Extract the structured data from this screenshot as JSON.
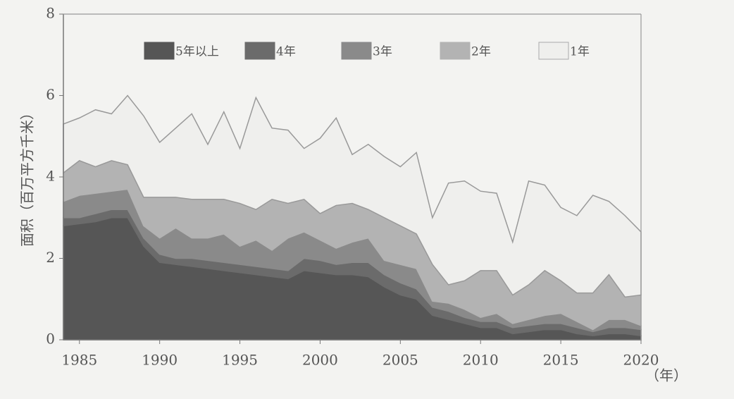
{
  "chart_data": {
    "type": "stacked-area",
    "y_label": "面积（百万平方千米）",
    "x_label": "（年）",
    "x": [
      1984,
      1985,
      1986,
      1987,
      1988,
      1989,
      1990,
      1991,
      1992,
      1993,
      1994,
      1995,
      1996,
      1997,
      1998,
      1999,
      2000,
      2001,
      2002,
      2003,
      2004,
      2005,
      2006,
      2007,
      2008,
      2009,
      2010,
      2011,
      2012,
      2013,
      2014,
      2015,
      2016,
      2017,
      2018,
      2019,
      2020
    ],
    "xlim": [
      1984,
      2020
    ],
    "xticks": [
      1985,
      1990,
      1995,
      2000,
      2005,
      2010,
      2015,
      2020
    ],
    "ylim": [
      0,
      8
    ],
    "yticks": [
      0,
      2,
      4,
      6,
      8
    ],
    "series": [
      {
        "name": "5年以上",
        "color": "#565656",
        "values": [
          2.8,
          2.85,
          2.9,
          3.0,
          3.0,
          2.3,
          1.9,
          1.85,
          1.8,
          1.75,
          1.7,
          1.65,
          1.6,
          1.55,
          1.5,
          1.7,
          1.65,
          1.6,
          1.6,
          1.55,
          1.3,
          1.1,
          1.0,
          0.6,
          0.5,
          0.4,
          0.3,
          0.3,
          0.15,
          0.2,
          0.25,
          0.25,
          0.15,
          0.1,
          0.15,
          0.15,
          0.1
        ]
      },
      {
        "name": "4年",
        "color": "#6b6b6b",
        "values": [
          0.2,
          0.15,
          0.2,
          0.2,
          0.2,
          0.2,
          0.2,
          0.15,
          0.2,
          0.2,
          0.2,
          0.2,
          0.2,
          0.2,
          0.2,
          0.3,
          0.3,
          0.25,
          0.3,
          0.35,
          0.3,
          0.3,
          0.25,
          0.2,
          0.2,
          0.15,
          0.15,
          0.15,
          0.15,
          0.15,
          0.15,
          0.15,
          0.15,
          0.1,
          0.15,
          0.15,
          0.15
        ]
      },
      {
        "name": "3年",
        "color": "#8a8a8a",
        "values": [
          0.4,
          0.55,
          0.5,
          0.45,
          0.5,
          0.3,
          0.4,
          0.75,
          0.5,
          0.55,
          0.7,
          0.45,
          0.65,
          0.45,
          0.8,
          0.65,
          0.5,
          0.4,
          0.5,
          0.6,
          0.35,
          0.45,
          0.5,
          0.15,
          0.2,
          0.2,
          0.1,
          0.2,
          0.1,
          0.15,
          0.2,
          0.25,
          0.15,
          0.05,
          0.2,
          0.2,
          0.1
        ]
      },
      {
        "name": "2年",
        "color": "#b3b3b3",
        "values": [
          0.7,
          0.85,
          0.65,
          0.75,
          0.6,
          0.7,
          1.0,
          0.75,
          0.95,
          0.95,
          0.85,
          1.05,
          0.75,
          1.25,
          0.85,
          0.8,
          0.65,
          1.05,
          0.95,
          0.7,
          1.05,
          0.95,
          0.85,
          0.9,
          0.45,
          0.7,
          1.15,
          1.05,
          0.7,
          0.85,
          1.1,
          0.8,
          0.7,
          0.9,
          1.1,
          0.55,
          0.75
        ]
      },
      {
        "name": "1年",
        "color": "#efefed",
        "values": [
          1.2,
          1.05,
          1.4,
          1.15,
          1.7,
          2.0,
          1.35,
          1.7,
          2.1,
          1.35,
          2.15,
          1.35,
          2.75,
          1.75,
          1.8,
          1.25,
          1.85,
          2.15,
          1.2,
          1.6,
          1.5,
          1.45,
          2.0,
          1.15,
          2.5,
          2.45,
          1.95,
          1.9,
          1.3,
          2.55,
          2.1,
          1.8,
          1.9,
          2.4,
          1.8,
          2.0,
          1.55
        ]
      }
    ]
  }
}
